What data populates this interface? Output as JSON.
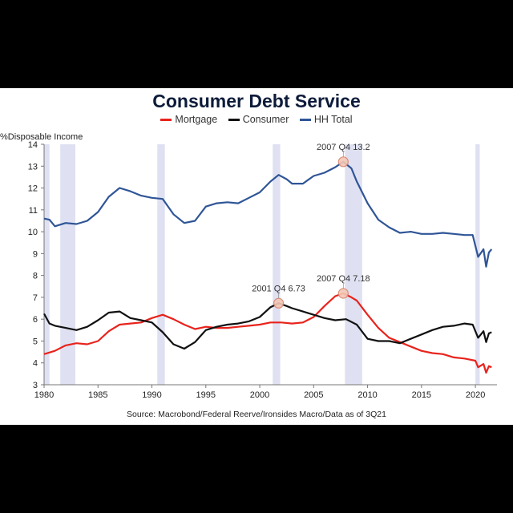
{
  "chart_data": {
    "type": "line",
    "title": "Consumer Debt Service",
    "ylabel": "%Disposable Income",
    "xlabel": "",
    "source": "Source: Macrobond/Federal Reerve/Ironsides Macro/Data as of 3Q21",
    "xlim": [
      1980,
      2022
    ],
    "ylim": [
      3,
      14
    ],
    "x_ticks": [
      "1980",
      "1985",
      "1990",
      "1995",
      "2000",
      "2005",
      "2010",
      "2015",
      "2020"
    ],
    "y_ticks": [
      "3",
      "4",
      "5",
      "6",
      "7",
      "8",
      "9",
      "10",
      "11",
      "12",
      "13",
      "14"
    ],
    "recessions": [
      [
        1980.0,
        1980.5
      ],
      [
        1981.5,
        1982.9
      ],
      [
        1990.5,
        1991.2
      ],
      [
        2001.2,
        2001.9
      ],
      [
        2007.9,
        2009.5
      ],
      [
        2020.0,
        2020.4
      ]
    ],
    "series": [
      {
        "name": "Mortgage",
        "color": "#e8231c",
        "points": [
          [
            1980,
            4.4
          ],
          [
            1981,
            4.55
          ],
          [
            1982,
            4.8
          ],
          [
            1983,
            4.9
          ],
          [
            1984,
            4.85
          ],
          [
            1985,
            5.0
          ],
          [
            1986,
            5.45
          ],
          [
            1987,
            5.75
          ],
          [
            1988,
            5.8
          ],
          [
            1989,
            5.85
          ],
          [
            1990,
            6.05
          ],
          [
            1991,
            6.2
          ],
          [
            1992,
            6.0
          ],
          [
            1993,
            5.75
          ],
          [
            1994,
            5.55
          ],
          [
            1995,
            5.65
          ],
          [
            1996,
            5.6
          ],
          [
            1997,
            5.6
          ],
          [
            1998,
            5.65
          ],
          [
            1999,
            5.7
          ],
          [
            2000,
            5.75
          ],
          [
            2001,
            5.85
          ],
          [
            2002,
            5.85
          ],
          [
            2003,
            5.8
          ],
          [
            2004,
            5.85
          ],
          [
            2005,
            6.1
          ],
          [
            2006,
            6.6
          ],
          [
            2007,
            7.05
          ],
          [
            2007.75,
            7.18
          ],
          [
            2008.5,
            7.0
          ],
          [
            2009,
            6.85
          ],
          [
            2010,
            6.2
          ],
          [
            2011,
            5.6
          ],
          [
            2012,
            5.15
          ],
          [
            2013,
            4.95
          ],
          [
            2014,
            4.75
          ],
          [
            2015,
            4.55
          ],
          [
            2016,
            4.45
          ],
          [
            2017,
            4.4
          ],
          [
            2018,
            4.25
          ],
          [
            2019,
            4.2
          ],
          [
            2020,
            4.1
          ],
          [
            2020.25,
            3.8
          ],
          [
            2020.75,
            3.95
          ],
          [
            2021,
            3.55
          ],
          [
            2021.25,
            3.85
          ],
          [
            2021.5,
            3.8
          ]
        ]
      },
      {
        "name": "Consumer",
        "color": "#111111",
        "points": [
          [
            1980,
            6.25
          ],
          [
            1980.5,
            5.8
          ],
          [
            1981,
            5.7
          ],
          [
            1982,
            5.6
          ],
          [
            1983,
            5.5
          ],
          [
            1984,
            5.65
          ],
          [
            1985,
            5.95
          ],
          [
            1986,
            6.3
          ],
          [
            1987,
            6.35
          ],
          [
            1988,
            6.05
          ],
          [
            1989,
            5.95
          ],
          [
            1990,
            5.85
          ],
          [
            1991,
            5.4
          ],
          [
            1992,
            4.85
          ],
          [
            1993,
            4.65
          ],
          [
            1994,
            4.95
          ],
          [
            1995,
            5.5
          ],
          [
            1996,
            5.65
          ],
          [
            1997,
            5.75
          ],
          [
            1998,
            5.8
          ],
          [
            1999,
            5.9
          ],
          [
            2000,
            6.1
          ],
          [
            2001,
            6.55
          ],
          [
            2001.75,
            6.73
          ],
          [
            2002.5,
            6.6
          ],
          [
            2003,
            6.5
          ],
          [
            2004,
            6.35
          ],
          [
            2005,
            6.2
          ],
          [
            2006,
            6.05
          ],
          [
            2007,
            5.95
          ],
          [
            2008,
            6.0
          ],
          [
            2009,
            5.75
          ],
          [
            2010,
            5.1
          ],
          [
            2011,
            5.0
          ],
          [
            2012,
            5.0
          ],
          [
            2013,
            4.9
          ],
          [
            2014,
            5.1
          ],
          [
            2015,
            5.3
          ],
          [
            2016,
            5.5
          ],
          [
            2017,
            5.65
          ],
          [
            2018,
            5.7
          ],
          [
            2019,
            5.8
          ],
          [
            2019.75,
            5.75
          ],
          [
            2020.25,
            5.15
          ],
          [
            2020.75,
            5.45
          ],
          [
            2021,
            4.95
          ],
          [
            2021.25,
            5.35
          ],
          [
            2021.5,
            5.4
          ]
        ]
      },
      {
        "name": "HH Total",
        "color": "#2f5597",
        "points": [
          [
            1980,
            10.6
          ],
          [
            1980.5,
            10.55
          ],
          [
            1981,
            10.25
          ],
          [
            1982,
            10.4
          ],
          [
            1983,
            10.35
          ],
          [
            1984,
            10.5
          ],
          [
            1985,
            10.9
          ],
          [
            1986,
            11.6
          ],
          [
            1987,
            12.0
          ],
          [
            1988,
            11.85
          ],
          [
            1989,
            11.65
          ],
          [
            1990,
            11.55
          ],
          [
            1991,
            11.5
          ],
          [
            1992,
            10.8
          ],
          [
            1993,
            10.4
          ],
          [
            1994,
            10.5
          ],
          [
            1995,
            11.15
          ],
          [
            1996,
            11.3
          ],
          [
            1997,
            11.35
          ],
          [
            1998,
            11.3
          ],
          [
            1999,
            11.55
          ],
          [
            2000,
            11.8
          ],
          [
            2001,
            12.3
          ],
          [
            2001.75,
            12.6
          ],
          [
            2002.5,
            12.4
          ],
          [
            2003,
            12.2
          ],
          [
            2004,
            12.2
          ],
          [
            2005,
            12.55
          ],
          [
            2006,
            12.7
          ],
          [
            2007,
            12.95
          ],
          [
            2007.75,
            13.2
          ],
          [
            2008.5,
            12.9
          ],
          [
            2009,
            12.3
          ],
          [
            2010,
            11.3
          ],
          [
            2011,
            10.55
          ],
          [
            2012,
            10.2
          ],
          [
            2013,
            9.95
          ],
          [
            2014,
            10.0
          ],
          [
            2015,
            9.9
          ],
          [
            2016,
            9.9
          ],
          [
            2017,
            9.95
          ],
          [
            2018,
            9.9
          ],
          [
            2019,
            9.85
          ],
          [
            2019.75,
            9.85
          ],
          [
            2020.25,
            8.85
          ],
          [
            2020.75,
            9.2
          ],
          [
            2021,
            8.4
          ],
          [
            2021.25,
            9.05
          ],
          [
            2021.5,
            9.2
          ]
        ]
      }
    ],
    "annotations": [
      {
        "label": "2007 Q4 13.2",
        "x": 2007.75,
        "y": 13.2
      },
      {
        "label": "2001 Q4 6.73",
        "x": 2001.75,
        "y": 6.73
      },
      {
        "label": "2007 Q4 7.18",
        "x": 2007.75,
        "y": 7.18
      }
    ]
  }
}
